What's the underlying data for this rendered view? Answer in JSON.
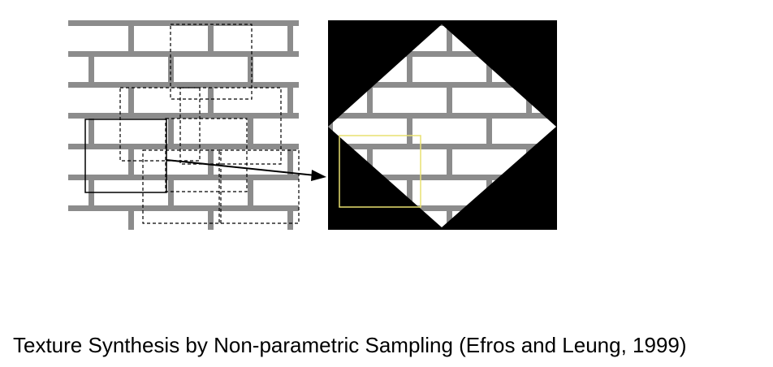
{
  "caption": "Texture Synthesis by Non-parametric Sampling (Efros and Leung, 1999)",
  "colors": {
    "brick_face": "#ffffff",
    "mortar": "#8c8c8c",
    "background_black": "#000000",
    "window_outline": "#000000",
    "target_window_outline": "#e8e070"
  },
  "panels": [
    {
      "name": "source-texture",
      "description_hidden": true
    },
    {
      "name": "synthesized-texture"
    }
  ]
}
